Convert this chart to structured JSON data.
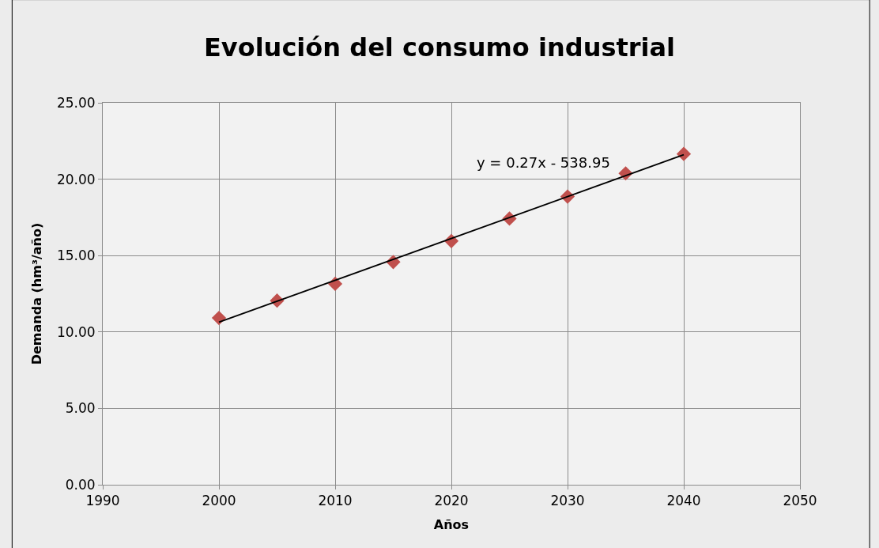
{
  "chart_data": {
    "type": "scatter",
    "title": "Evolución del consumo industrial",
    "xlabel": "Años",
    "ylabel": "Demanda (hm³/año)",
    "x": [
      2000,
      2005,
      2010,
      2015,
      2020,
      2025,
      2030,
      2035,
      2040
    ],
    "series": [
      {
        "color": "#c0504d",
        "marker": "diamond",
        "values": [
          10.92,
          12.05,
          13.15,
          14.58,
          15.95,
          17.42,
          18.86,
          20.38,
          21.65
        ]
      },
      {
        "type": "line",
        "color": "#000000",
        "marker": "none",
        "x": [
          2000,
          2040
        ],
        "values": [
          10.64,
          21.6
        ]
      }
    ],
    "annotations": [
      "y = 0.27x - 538.95"
    ],
    "xlim": [
      1990,
      2050
    ],
    "xticks": [
      1990,
      2000,
      2010,
      2020,
      2030,
      2040,
      2050
    ],
    "ylim": [
      0,
      25
    ],
    "yticks": [
      {
        "value": 0,
        "label": "0.00"
      },
      {
        "value": 5,
        "label": "5.00"
      },
      {
        "value": 10,
        "label": "10.00"
      },
      {
        "value": 15,
        "label": "15.00"
      },
      {
        "value": 20,
        "label": "20.00"
      },
      {
        "value": 25,
        "label": "25.00"
      }
    ],
    "grid": true
  }
}
